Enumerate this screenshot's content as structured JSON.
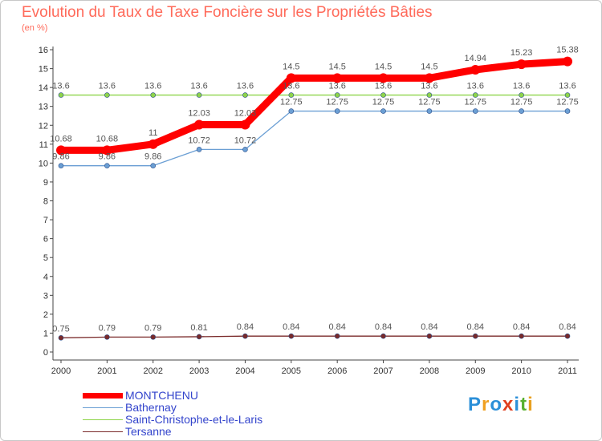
{
  "title": "Evolution du Taux de Taxe Foncière sur les Propriétés Bâties",
  "unit": "(en %)",
  "brand": {
    "name": "Proxiti",
    "letters": [
      "P",
      "r",
      "o",
      "x",
      "i",
      "t",
      "i"
    ],
    "colors": [
      "#2b8fd8",
      "#f0a020",
      "#2b8fd8",
      "#e04020",
      "#2b8fd8",
      "#58b030",
      "#e8a020"
    ]
  },
  "chart_data": {
    "type": "line",
    "title": "Evolution du Taux de Taxe Foncière sur les Propriétés Bâties",
    "ylabel": "(en %)",
    "xlabel": "",
    "x": [
      "2000",
      "2001",
      "2002",
      "2003",
      "2004",
      "2005",
      "2006",
      "2007",
      "2008",
      "2009",
      "2010",
      "2011"
    ],
    "ylim": [
      0,
      16
    ],
    "yticks": [
      "0",
      "1",
      "2",
      "3",
      "4",
      "5",
      "6",
      "7",
      "8",
      "9",
      "10",
      "11",
      "12",
      "13",
      "14",
      "15",
      "16"
    ],
    "legend_position": "bottom-left",
    "series": [
      {
        "name": "MONTCHENU",
        "color": "#ff0000",
        "emphasis": true,
        "values": [
          10.68,
          10.68,
          11,
          12.03,
          12.03,
          14.5,
          14.5,
          14.5,
          14.5,
          14.94,
          15.23,
          15.38
        ],
        "labels": [
          "10.68",
          "10.68",
          "11",
          "12.03",
          "12.03",
          "14.5",
          "14.5",
          "14.5",
          "14.5",
          "14.94",
          "15.23",
          "15.38"
        ]
      },
      {
        "name": "Bathernay",
        "color": "#6b9fd4",
        "emphasis": false,
        "values": [
          9.86,
          9.86,
          9.86,
          10.72,
          10.72,
          12.75,
          12.75,
          12.75,
          12.75,
          12.75,
          12.75,
          12.75
        ],
        "labels": [
          "9.86",
          "9.86",
          "9.86",
          "10.72",
          "10.72",
          "12.75",
          "12.75",
          "12.75",
          "12.75",
          "12.75",
          "12.75",
          "12.75"
        ]
      },
      {
        "name": "Saint-Christophe-et-le-Laris",
        "color": "#8ed44a",
        "emphasis": false,
        "values": [
          13.6,
          13.6,
          13.6,
          13.6,
          13.6,
          13.6,
          13.6,
          13.6,
          13.6,
          13.6,
          13.6,
          13.6
        ],
        "labels": [
          "13.6",
          "13.6",
          "13.6",
          "13.6",
          "13.6",
          "13.6",
          "13.6",
          "13.6",
          "13.6",
          "13.6",
          "13.6",
          "13.6"
        ]
      },
      {
        "name": "Tersanne",
        "color": "#7a2a2a",
        "emphasis": false,
        "values": [
          0.75,
          0.79,
          0.79,
          0.81,
          0.84,
          0.84,
          0.84,
          0.84,
          0.84,
          0.84,
          0.84,
          0.84
        ],
        "labels": [
          "0.75",
          "0.79",
          "0.79",
          "0.81",
          "0.84",
          "0.84",
          "0.84",
          "0.84",
          "0.84",
          "0.84",
          "0.84",
          "0.84"
        ]
      }
    ]
  }
}
